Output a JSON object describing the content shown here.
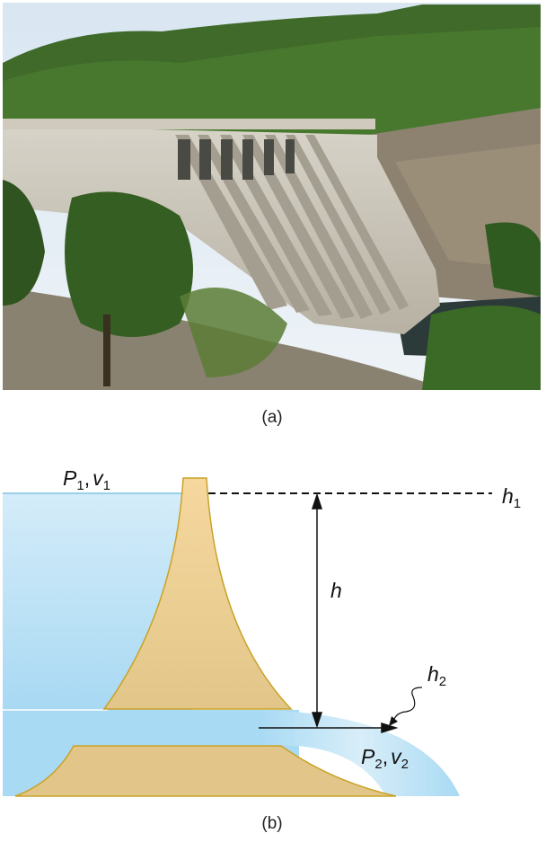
{
  "panel_a": {
    "caption": "(a)",
    "content": "photograph of a concrete dam with spillways"
  },
  "panel_b": {
    "caption": "(b)",
    "labels": {
      "P1": "P",
      "P1_sub": "1",
      "comma1": ",",
      "v1": "v",
      "v1_sub": "1",
      "P2": "P",
      "P2_sub": "2",
      "comma2": ",",
      "v2": "v",
      "v2_sub": "2",
      "h": "h",
      "h1": "h",
      "h1_sub": "1",
      "h2": "h",
      "h2_sub": "2"
    },
    "colors": {
      "water": "#a9daf3",
      "dam_fill": "#e8c98a",
      "dam_stroke": "#c9a227"
    }
  }
}
